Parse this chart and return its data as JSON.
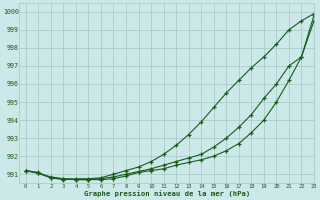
{
  "title": "Graphe pression niveau de la mer (hPa)",
  "bg_color": "#cce8e8",
  "grid_color": "#aacccc",
  "line_color": "#1a5c1a",
  "xlim": [
    -0.5,
    23
  ],
  "ylim": [
    990.5,
    1000.5
  ],
  "xticks": [
    0,
    1,
    2,
    3,
    4,
    5,
    6,
    7,
    8,
    9,
    10,
    11,
    12,
    13,
    14,
    15,
    16,
    17,
    18,
    19,
    20,
    21,
    22,
    23
  ],
  "yticks": [
    991,
    992,
    993,
    994,
    995,
    996,
    997,
    998,
    999,
    1000
  ],
  "series1_steep": [
    991.2,
    991.1,
    990.8,
    990.7,
    990.75,
    990.75,
    990.8,
    991.0,
    991.2,
    991.4,
    991.7,
    992.1,
    992.6,
    993.2,
    993.9,
    994.7,
    995.5,
    996.2,
    996.9,
    997.5,
    998.2,
    999.0,
    999.5,
    999.9
  ],
  "series2_flat": [
    991.2,
    991.05,
    990.8,
    990.75,
    990.7,
    990.7,
    990.7,
    990.75,
    990.9,
    991.1,
    991.2,
    991.3,
    991.5,
    991.65,
    991.8,
    992.0,
    992.3,
    992.7,
    993.3,
    994.0,
    995.0,
    996.2,
    997.5,
    999.8
  ],
  "series3_mid": [
    991.2,
    991.05,
    990.85,
    990.75,
    990.7,
    990.7,
    990.75,
    990.85,
    991.0,
    991.15,
    991.3,
    991.5,
    991.7,
    991.9,
    992.1,
    992.5,
    993.0,
    993.6,
    994.3,
    995.2,
    996.0,
    997.0,
    997.5,
    999.5
  ]
}
